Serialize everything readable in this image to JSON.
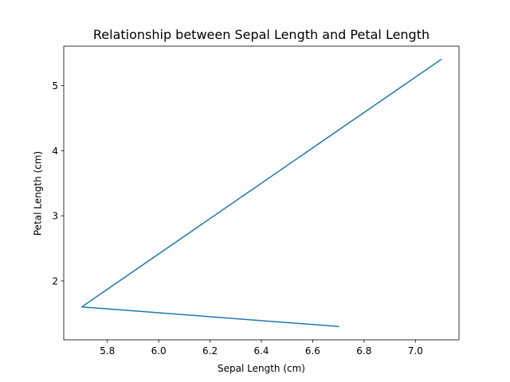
{
  "chart_data": {
    "type": "line",
    "title": "Relationship between Sepal Length and Petal Length",
    "xlabel": "Sepal Length (cm)",
    "ylabel": "Petal Length (cm)",
    "xlim": [
      5.63,
      7.17
    ],
    "ylim": [
      1.095,
      5.605
    ],
    "xticks": [
      5.8,
      6.0,
      6.2,
      6.4,
      6.6,
      6.8,
      7.0
    ],
    "xtick_labels": [
      "5.8",
      "6.0",
      "6.2",
      "6.4",
      "6.6",
      "6.8",
      "7.0"
    ],
    "yticks": [
      2,
      3,
      4,
      5
    ],
    "ytick_labels": [
      "2",
      "3",
      "4",
      "5"
    ],
    "grid": false,
    "series": [
      {
        "color": "#1f77b4",
        "x": [
          7.1,
          5.7,
          6.7
        ],
        "y": [
          5.4,
          1.6,
          1.3
        ]
      }
    ]
  }
}
